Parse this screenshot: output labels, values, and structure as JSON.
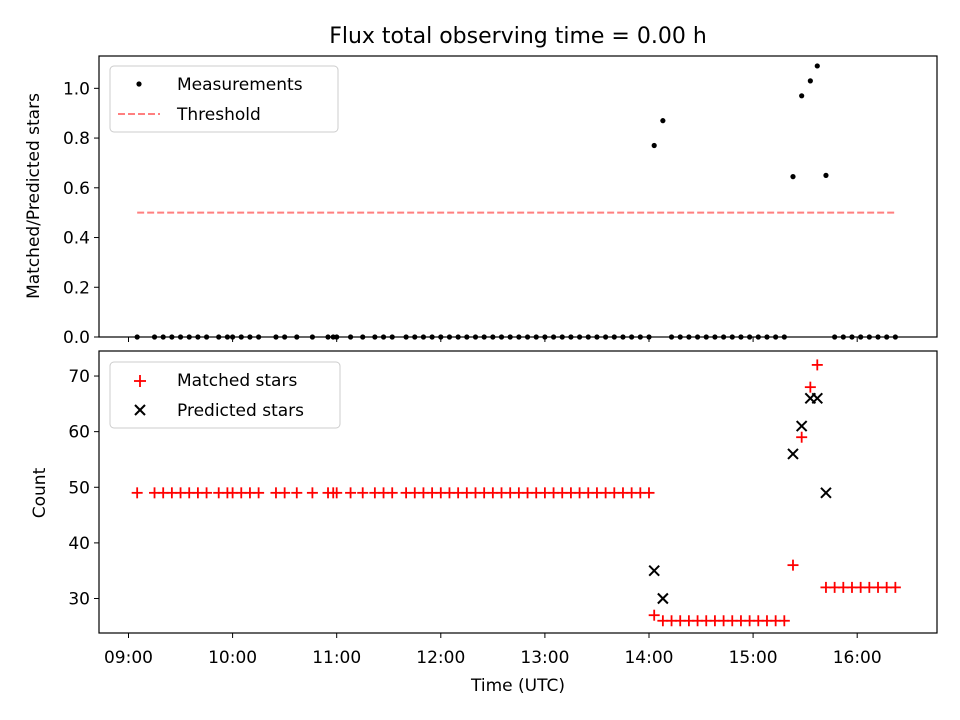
{
  "chart_data": [
    {
      "type": "scatter",
      "title": "Flux total observing time = 0.00 h",
      "ylabel": "Matched/Predicted stars",
      "ylim": [
        0,
        1.13
      ],
      "yticks": [
        0.0,
        0.2,
        0.4,
        0.6,
        0.8,
        1.0
      ],
      "ytick_labels": [
        "0.0",
        "0.2",
        "0.4",
        "0.6",
        "0.8",
        "1.0"
      ],
      "legend": {
        "placement": "top-left",
        "entries": [
          "Measurements",
          "Threshold"
        ]
      },
      "series": [
        {
          "name": "Measurements",
          "marker": "dot",
          "color": "#000000",
          "points": [
            [
              "09:05",
              0.0
            ],
            [
              "09:15",
              0.0
            ],
            [
              "09:20",
              0.0
            ],
            [
              "09:25",
              0.0
            ],
            [
              "09:30",
              0.0
            ],
            [
              "09:35",
              0.0
            ],
            [
              "09:40",
              0.0
            ],
            [
              "09:45",
              0.0
            ],
            [
              "09:52",
              0.0
            ],
            [
              "09:57",
              0.0
            ],
            [
              "10:00",
              0.0
            ],
            [
              "10:05",
              0.0
            ],
            [
              "10:10",
              0.0
            ],
            [
              "10:15",
              0.0
            ],
            [
              "10:25",
              0.0
            ],
            [
              "10:30",
              0.0
            ],
            [
              "10:37",
              0.0
            ],
            [
              "10:46",
              0.0
            ],
            [
              "10:55",
              0.0
            ],
            [
              "10:58",
              0.0
            ],
            [
              "11:00",
              0.0
            ],
            [
              "11:08",
              0.0
            ],
            [
              "11:15",
              0.0
            ],
            [
              "11:22",
              0.0
            ],
            [
              "11:27",
              0.0
            ],
            [
              "11:32",
              0.0
            ],
            [
              "11:40",
              0.0
            ],
            [
              "11:45",
              0.0
            ],
            [
              "11:50",
              0.0
            ],
            [
              "11:55",
              0.0
            ],
            [
              "12:00",
              0.0
            ],
            [
              "12:05",
              0.0
            ],
            [
              "12:10",
              0.0
            ],
            [
              "12:15",
              0.0
            ],
            [
              "12:20",
              0.0
            ],
            [
              "12:25",
              0.0
            ],
            [
              "12:30",
              0.0
            ],
            [
              "12:35",
              0.0
            ],
            [
              "12:40",
              0.0
            ],
            [
              "12:45",
              0.0
            ],
            [
              "12:50",
              0.0
            ],
            [
              "12:55",
              0.0
            ],
            [
              "13:00",
              0.0
            ],
            [
              "13:05",
              0.0
            ],
            [
              "13:10",
              0.0
            ],
            [
              "13:15",
              0.0
            ],
            [
              "13:20",
              0.0
            ],
            [
              "13:25",
              0.0
            ],
            [
              "13:30",
              0.0
            ],
            [
              "13:35",
              0.0
            ],
            [
              "13:40",
              0.0
            ],
            [
              "13:45",
              0.0
            ],
            [
              "13:50",
              0.0
            ],
            [
              "13:55",
              0.0
            ],
            [
              "14:00",
              0.0
            ],
            [
              "14:03",
              0.77
            ],
            [
              "14:08",
              0.87
            ],
            [
              "14:13",
              0.0
            ],
            [
              "14:18",
              0.0
            ],
            [
              "14:23",
              0.0
            ],
            [
              "14:28",
              0.0
            ],
            [
              "14:33",
              0.0
            ],
            [
              "14:38",
              0.0
            ],
            [
              "14:43",
              0.0
            ],
            [
              "14:48",
              0.0
            ],
            [
              "14:53",
              0.0
            ],
            [
              "14:58",
              0.0
            ],
            [
              "15:03",
              0.0
            ],
            [
              "15:08",
              0.0
            ],
            [
              "15:13",
              0.0
            ],
            [
              "15:18",
              0.0
            ],
            [
              "15:23",
              0.645
            ],
            [
              "15:28",
              0.97
            ],
            [
              "15:33",
              1.03
            ],
            [
              "15:37",
              1.09
            ],
            [
              "15:42",
              0.65
            ],
            [
              "15:47",
              0.0
            ],
            [
              "15:52",
              0.0
            ],
            [
              "15:57",
              0.0
            ],
            [
              "16:02",
              0.0
            ],
            [
              "16:07",
              0.0
            ],
            [
              "16:12",
              0.0
            ],
            [
              "16:17",
              0.0
            ],
            [
              "16:22",
              0.0
            ]
          ]
        },
        {
          "name": "Threshold",
          "style": "dashed",
          "color": "#ff7f7f",
          "points": [
            [
              "09:05",
              0.5
            ],
            [
              "16:22",
              0.5
            ]
          ]
        }
      ]
    },
    {
      "type": "scatter",
      "xlabel": "Time (UTC)",
      "ylabel": "Count",
      "ylim": [
        23.8,
        74.5
      ],
      "yticks": [
        30,
        40,
        50,
        60,
        70
      ],
      "ytick_labels": [
        "30",
        "40",
        "50",
        "60",
        "70"
      ],
      "xlim": [
        "08:43",
        "16:46"
      ],
      "xticks": [
        "09:00",
        "10:00",
        "11:00",
        "12:00",
        "13:00",
        "14:00",
        "15:00",
        "16:00"
      ],
      "legend": {
        "placement": "top-left",
        "entries": [
          "Matched stars",
          "Predicted stars"
        ]
      },
      "series": [
        {
          "name": "Matched stars",
          "marker": "plus",
          "color": "#ff0000",
          "points": [
            [
              "09:05",
              49
            ],
            [
              "09:15",
              49
            ],
            [
              "09:20",
              49
            ],
            [
              "09:25",
              49
            ],
            [
              "09:30",
              49
            ],
            [
              "09:35",
              49
            ],
            [
              "09:40",
              49
            ],
            [
              "09:45",
              49
            ],
            [
              "09:52",
              49
            ],
            [
              "09:57",
              49
            ],
            [
              "10:00",
              49
            ],
            [
              "10:05",
              49
            ],
            [
              "10:10",
              49
            ],
            [
              "10:15",
              49
            ],
            [
              "10:25",
              49
            ],
            [
              "10:30",
              49
            ],
            [
              "10:37",
              49
            ],
            [
              "10:46",
              49
            ],
            [
              "10:55",
              49
            ],
            [
              "10:58",
              49
            ],
            [
              "11:00",
              49
            ],
            [
              "11:08",
              49
            ],
            [
              "11:15",
              49
            ],
            [
              "11:22",
              49
            ],
            [
              "11:27",
              49
            ],
            [
              "11:32",
              49
            ],
            [
              "11:40",
              49
            ],
            [
              "11:45",
              49
            ],
            [
              "11:50",
              49
            ],
            [
              "11:55",
              49
            ],
            [
              "12:00",
              49
            ],
            [
              "12:05",
              49
            ],
            [
              "12:10",
              49
            ],
            [
              "12:15",
              49
            ],
            [
              "12:20",
              49
            ],
            [
              "12:25",
              49
            ],
            [
              "12:30",
              49
            ],
            [
              "12:35",
              49
            ],
            [
              "12:40",
              49
            ],
            [
              "12:45",
              49
            ],
            [
              "12:50",
              49
            ],
            [
              "12:55",
              49
            ],
            [
              "13:00",
              49
            ],
            [
              "13:05",
              49
            ],
            [
              "13:10",
              49
            ],
            [
              "13:15",
              49
            ],
            [
              "13:20",
              49
            ],
            [
              "13:25",
              49
            ],
            [
              "13:30",
              49
            ],
            [
              "13:35",
              49
            ],
            [
              "13:40",
              49
            ],
            [
              "13:45",
              49
            ],
            [
              "13:50",
              49
            ],
            [
              "13:55",
              49
            ],
            [
              "14:00",
              49
            ],
            [
              "14:03",
              27
            ],
            [
              "14:08",
              26
            ],
            [
              "14:13",
              26
            ],
            [
              "14:18",
              26
            ],
            [
              "14:23",
              26
            ],
            [
              "14:28",
              26
            ],
            [
              "14:33",
              26
            ],
            [
              "14:38",
              26
            ],
            [
              "14:43",
              26
            ],
            [
              "14:48",
              26
            ],
            [
              "14:53",
              26
            ],
            [
              "14:58",
              26
            ],
            [
              "15:03",
              26
            ],
            [
              "15:08",
              26
            ],
            [
              "15:13",
              26
            ],
            [
              "15:18",
              26
            ],
            [
              "15:23",
              36
            ],
            [
              "15:28",
              59
            ],
            [
              "15:33",
              68
            ],
            [
              "15:37",
              72
            ],
            [
              "15:42",
              32
            ],
            [
              "15:47",
              32
            ],
            [
              "15:52",
              32
            ],
            [
              "15:57",
              32
            ],
            [
              "16:02",
              32
            ],
            [
              "16:07",
              32
            ],
            [
              "16:12",
              32
            ],
            [
              "16:17",
              32
            ],
            [
              "16:22",
              32
            ]
          ]
        },
        {
          "name": "Predicted stars",
          "marker": "x",
          "color": "#000000",
          "points": [
            [
              "14:03",
              35
            ],
            [
              "14:08",
              30
            ],
            [
              "15:23",
              56
            ],
            [
              "15:28",
              61
            ],
            [
              "15:33",
              66
            ],
            [
              "15:37",
              66
            ],
            [
              "15:42",
              49
            ]
          ]
        }
      ]
    }
  ]
}
